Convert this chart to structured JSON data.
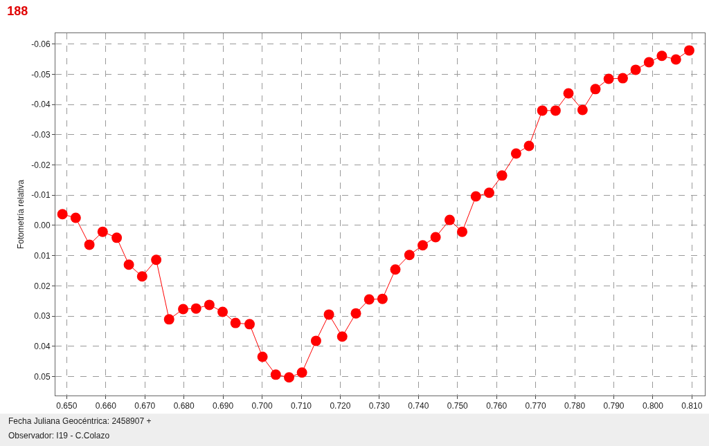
{
  "chart_data": {
    "type": "line",
    "title": "188",
    "xlabel": "Fecha Juliana Geocéntrica: 2458907 +",
    "ylabel": "Fotometría relativa",
    "annotations": [
      "Observador: I19 - C.Colazo"
    ],
    "x": [
      0.6489,
      0.6523,
      0.6558,
      0.6592,
      0.6628,
      0.6659,
      0.6693,
      0.6729,
      0.6762,
      0.6798,
      0.6831,
      0.6865,
      0.6899,
      0.6932,
      0.6968,
      0.7001,
      0.7035,
      0.7069,
      0.7102,
      0.7138,
      0.7171,
      0.7205,
      0.724,
      0.7274,
      0.7308,
      0.7341,
      0.7377,
      0.7411,
      0.7444,
      0.748,
      0.7512,
      0.7547,
      0.7581,
      0.7614,
      0.765,
      0.7683,
      0.7717,
      0.7751,
      0.7784,
      0.782,
      0.7853,
      0.7887,
      0.7923,
      0.7956,
      0.799,
      0.8023,
      0.8059,
      0.8093
    ],
    "series": [
      {
        "color": "#ff0000",
        "values": [
          -0.0037,
          -0.0025,
          0.0064,
          0.0021,
          0.0041,
          0.013,
          0.0169,
          0.0114,
          0.0311,
          0.0277,
          0.0275,
          0.0263,
          0.0286,
          0.0323,
          0.0327,
          0.0435,
          0.0494,
          0.0503,
          0.0487,
          0.0382,
          0.0295,
          0.0368,
          0.0291,
          0.0245,
          0.0243,
          0.0146,
          0.0098,
          0.0066,
          0.0039,
          -0.0018,
          0.0021,
          -0.0096,
          -0.0108,
          -0.0165,
          -0.0238,
          -0.0263,
          -0.038,
          -0.038,
          -0.0437,
          -0.0382,
          -0.0451,
          -0.0485,
          -0.0487,
          -0.0515,
          -0.054,
          -0.0561,
          -0.0549,
          -0.0579
        ]
      }
    ],
    "xlim": [
      0.6471,
      0.8133
    ],
    "ylim": [
      0.0563,
      -0.0636
    ],
    "xticks": [
      {
        "value": 0.65,
        "label": "0.650"
      },
      {
        "value": 0.66,
        "label": "0.660"
      },
      {
        "value": 0.67,
        "label": "0.670"
      },
      {
        "value": 0.68,
        "label": "0.680"
      },
      {
        "value": 0.69,
        "label": "0.690"
      },
      {
        "value": 0.7,
        "label": "0.700"
      },
      {
        "value": 0.71,
        "label": "0.710"
      },
      {
        "value": 0.72,
        "label": "0.720"
      },
      {
        "value": 0.73,
        "label": "0.730"
      },
      {
        "value": 0.74,
        "label": "0.740"
      },
      {
        "value": 0.75,
        "label": "0.750"
      },
      {
        "value": 0.76,
        "label": "0.760"
      },
      {
        "value": 0.77,
        "label": "0.770"
      },
      {
        "value": 0.78,
        "label": "0.780"
      },
      {
        "value": 0.79,
        "label": "0.790"
      },
      {
        "value": 0.8,
        "label": "0.800"
      },
      {
        "value": 0.81,
        "label": "0.810"
      }
    ],
    "yticks": [
      {
        "value": -0.06,
        "label": "-0.06"
      },
      {
        "value": -0.05,
        "label": "-0.05"
      },
      {
        "value": -0.04,
        "label": "-0.04"
      },
      {
        "value": -0.03,
        "label": "-0.03"
      },
      {
        "value": -0.02,
        "label": "-0.02"
      },
      {
        "value": -0.01,
        "label": "-0.01"
      },
      {
        "value": 0,
        "label": "0.00"
      },
      {
        "value": 0.01,
        "label": "0.01"
      },
      {
        "value": 0.02,
        "label": "0.02"
      },
      {
        "value": 0.03,
        "label": "0.03"
      },
      {
        "value": 0.04,
        "label": "0.04"
      },
      {
        "value": 0.05,
        "label": "0.05"
      }
    ],
    "grid": true,
    "marker": "circle",
    "line_style": "solid"
  }
}
